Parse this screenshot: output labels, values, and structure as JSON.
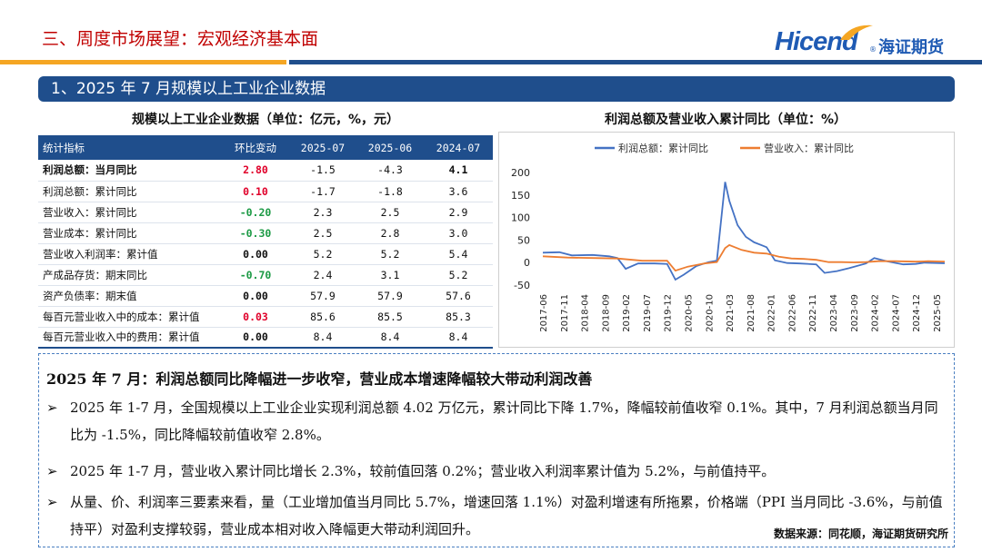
{
  "header": {
    "page_title": "三、周度市场展望：宏观经济基本面",
    "logo_text": "Hicend",
    "logo_cn": "海证期货"
  },
  "section": {
    "title": "1、2025 年 7 月规模以上工业企业数据"
  },
  "table": {
    "title": "规模以上工业企业数据（单位：亿元，%，元）",
    "headers": [
      "统计指标",
      "环比变动",
      "2025-07",
      "2025-06",
      "2024-07"
    ],
    "rows": [
      [
        "利润总额：当月同比",
        "2.80",
        "-1.5",
        "-4.3",
        "4.1"
      ],
      [
        "利润总额：累计同比",
        "0.10",
        "-1.7",
        "-1.8",
        "3.6"
      ],
      [
        "营业收入：累计同比",
        "-0.20",
        "2.3",
        "2.5",
        "2.9"
      ],
      [
        "营业成本：累计同比",
        "-0.30",
        "2.5",
        "2.8",
        "3.0"
      ],
      [
        "营业收入利润率：累计值",
        "0.00",
        "5.2",
        "5.2",
        "5.4"
      ],
      [
        "产成品存货：期末同比",
        "-0.70",
        "2.4",
        "3.1",
        "5.2"
      ],
      [
        "资产负债率：期末值",
        "0.00",
        "57.9",
        "57.9",
        "57.6"
      ],
      [
        "每百元营业收入中的成本：累计值",
        "0.03",
        "85.6",
        "85.5",
        "85.3"
      ],
      [
        "每百元营业收入中的费用：累计值",
        "0.00",
        "8.4",
        "8.4",
        "8.4"
      ]
    ],
    "colors": {
      "up": "#e0002a",
      "down": "#1c9a45",
      "flat": "#111111",
      "header_bg": "#1f4e8c"
    }
  },
  "chart_data": {
    "type": "line",
    "title": "利润总额及营业收入累计同比（单位：%）",
    "legend_position": "top",
    "ylim": [
      -50,
      200
    ],
    "yticks": [
      -50,
      0,
      50,
      100,
      150,
      200
    ],
    "xticks": [
      "2017-06",
      "2017-11",
      "2018-04",
      "2018-09",
      "2019-02",
      "2019-07",
      "2019-12",
      "2020-05",
      "2020-10",
      "2021-03",
      "2021-08",
      "2022-01",
      "2022-06",
      "2022-11",
      "2023-04",
      "2023-09",
      "2024-02",
      "2024-07",
      "2024-12",
      "2025-05"
    ],
    "series": [
      {
        "name": "利润总额：累计同比",
        "color": "#4472c4",
        "points": [
          [
            "2017-06",
            22
          ],
          [
            "2017-10",
            23
          ],
          [
            "2018-01",
            16
          ],
          [
            "2018-06",
            17
          ],
          [
            "2018-10",
            14
          ],
          [
            "2018-12",
            10
          ],
          [
            "2019-02",
            -14
          ],
          [
            "2019-05",
            -2
          ],
          [
            "2019-09",
            -2
          ],
          [
            "2019-12",
            -3
          ],
          [
            "2020-02",
            -38
          ],
          [
            "2020-04",
            -27
          ],
          [
            "2020-07",
            -8
          ],
          [
            "2020-10",
            1
          ],
          [
            "2020-12",
            4
          ],
          [
            "2021-02",
            179
          ],
          [
            "2021-03",
            137
          ],
          [
            "2021-05",
            83
          ],
          [
            "2021-07",
            57
          ],
          [
            "2021-09",
            45
          ],
          [
            "2021-11",
            38
          ],
          [
            "2021-12",
            34
          ],
          [
            "2022-02",
            5
          ],
          [
            "2022-05",
            -1
          ],
          [
            "2022-08",
            -2
          ],
          [
            "2022-12",
            -4
          ],
          [
            "2023-02",
            -23
          ],
          [
            "2023-05",
            -19
          ],
          [
            "2023-08",
            -12
          ],
          [
            "2023-12",
            -2
          ],
          [
            "2024-02",
            10
          ],
          [
            "2024-05",
            3
          ],
          [
            "2024-09",
            -4
          ],
          [
            "2024-12",
            -3
          ],
          [
            "2025-02",
            -0.3
          ],
          [
            "2025-05",
            -1
          ],
          [
            "2025-07",
            -1.7
          ]
        ]
      },
      {
        "name": "营业收入：累计同比",
        "color": "#ed7d31",
        "points": [
          [
            "2017-06",
            14
          ],
          [
            "2017-12",
            11
          ],
          [
            "2018-06",
            10
          ],
          [
            "2018-12",
            9
          ],
          [
            "2019-06",
            4
          ],
          [
            "2019-12",
            4
          ],
          [
            "2020-02",
            -18
          ],
          [
            "2020-05",
            -9
          ],
          [
            "2020-09",
            -2
          ],
          [
            "2020-12",
            1
          ],
          [
            "2021-02",
            32
          ],
          [
            "2021-03",
            39
          ],
          [
            "2021-06",
            28
          ],
          [
            "2021-09",
            22
          ],
          [
            "2021-12",
            20
          ],
          [
            "2022-03",
            13
          ],
          [
            "2022-06",
            9
          ],
          [
            "2022-09",
            8
          ],
          [
            "2022-12",
            6
          ],
          [
            "2023-03",
            1
          ],
          [
            "2023-06",
            1
          ],
          [
            "2023-09",
            0.5
          ],
          [
            "2023-12",
            1
          ],
          [
            "2024-03",
            3
          ],
          [
            "2024-07",
            3
          ],
          [
            "2024-12",
            2
          ],
          [
            "2025-03",
            3
          ],
          [
            "2025-07",
            2.3
          ]
        ]
      }
    ]
  },
  "text": {
    "summary": "2025 年 7 月：利润总额同比降幅进一步收窄，营业成本增速降幅较大带动利润改善",
    "bullet_symbol": "➢",
    "bullets": [
      "2025 年 1-7 月，全国规模以上工业企业实现利润总额 4.02 万亿元，累计同比下降 1.7%，降幅较前值收窄 0.1%。其中，7 月利润总额当月同比为 -1.5%，同比降幅较前值收窄 2.8%。",
      "2025 年 1-7 月，营业收入累计同比增长 2.3%，较前值回落 0.2%；营业收入利润率累计值为 5.2%，与前值持平。",
      "从量、价、利润率三要素来看，量（工业增加值当月同比 5.7%，增速回落 1.1%）对盈利增速有所拖累，价格端（PPI 当月同比 -3.6%，与前值持平）对盈利支撑较弱，营业成本相对收入降幅更大带动利润回升。"
    ],
    "source": "数据来源：同花顺，海证期货研究所"
  }
}
